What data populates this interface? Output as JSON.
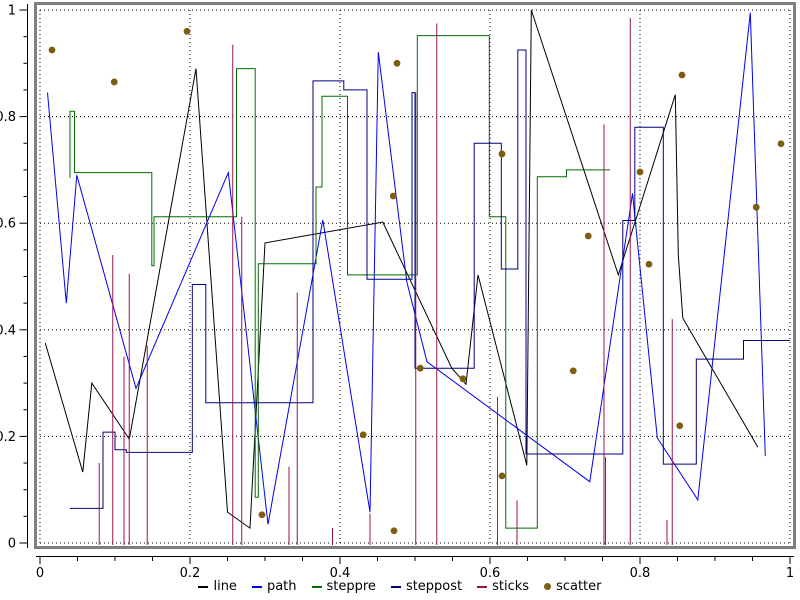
{
  "style": {
    "background": "#ffffff",
    "frame_color": "#7f7f7f",
    "grid_color": "#000000",
    "axis_color": "#000000",
    "text_color": "#000000"
  },
  "axes": {
    "x": {
      "min": 0,
      "max": 1,
      "major_step": 0.2,
      "minor_step": 0.05,
      "tick_labels": [
        "0",
        "0.2",
        "0.4",
        "0.6",
        "0.8",
        "1"
      ]
    },
    "y": {
      "min": 0,
      "max": 1,
      "major_step": 0.2,
      "minor_step": 0.05,
      "tick_labels": [
        "0",
        "0.2",
        "0.4",
        "0.6",
        "0.8",
        "1"
      ]
    }
  },
  "legend": {
    "items": [
      {
        "label": "line",
        "color": "#000000",
        "marker": "dash"
      },
      {
        "label": "path",
        "color": "#0000f0",
        "marker": "dash"
      },
      {
        "label": "steppre",
        "color": "#006e00",
        "marker": "dash"
      },
      {
        "label": "steppost",
        "color": "#000080",
        "marker": "dash"
      },
      {
        "label": "sticks",
        "color": "#991450",
        "marker": "dash"
      },
      {
        "label": "scatter",
        "color": "#7e5c10",
        "marker": "dot"
      }
    ]
  },
  "chart_data": {
    "type": "mixed",
    "title": "",
    "xlabel": "",
    "ylabel": "",
    "xlim": [
      0,
      1
    ],
    "ylim": [
      0,
      1
    ],
    "grid": "dotted lines at 0.2 intervals on both axes",
    "legend_position": "bottom-center",
    "series": [
      {
        "name": "line",
        "type": "line",
        "color": "#000000",
        "points": [
          [
            0.007,
            0.375
          ],
          [
            0.057,
            0.133
          ],
          [
            0.069,
            0.3
          ],
          [
            0.119,
            0.195
          ],
          [
            0.208,
            0.89
          ],
          [
            0.25,
            0.058
          ],
          [
            0.28,
            0.028
          ],
          [
            0.3,
            0.563
          ],
          [
            0.457,
            0.602
          ],
          [
            0.549,
            0.328
          ],
          [
            0.568,
            0.298
          ],
          [
            0.584,
            0.503
          ],
          [
            0.649,
            0.146
          ],
          [
            0.655,
            1.0
          ],
          [
            0.771,
            0.503
          ],
          [
            0.847,
            0.841
          ],
          [
            0.851,
            0.54
          ],
          [
            0.857,
            0.422
          ],
          [
            0.957,
            0.18
          ]
        ]
      },
      {
        "name": "path",
        "type": "line",
        "color": "#0000f0",
        "points": [
          [
            0.01,
            0.845
          ],
          [
            0.035,
            0.45
          ],
          [
            0.049,
            0.69
          ],
          [
            0.128,
            0.29
          ],
          [
            0.251,
            0.695
          ],
          [
            0.304,
            0.035
          ],
          [
            0.377,
            0.606
          ],
          [
            0.44,
            0.058
          ],
          [
            0.451,
            0.921
          ],
          [
            0.489,
            0.49
          ],
          [
            0.516,
            0.34
          ],
          [
            0.733,
            0.115
          ],
          [
            0.79,
            0.656
          ],
          [
            0.823,
            0.197
          ],
          [
            0.877,
            0.081
          ],
          [
            0.947,
            0.995
          ],
          [
            0.967,
            0.163
          ]
        ]
      },
      {
        "name": "steppre",
        "type": "steppre",
        "color": "#006e00",
        "points": [
          [
            0.04,
            0.685
          ],
          [
            0.046,
            0.81
          ],
          [
            0.149,
            0.695
          ],
          [
            0.152,
            0.52
          ],
          [
            0.262,
            0.612
          ],
          [
            0.287,
            0.89
          ],
          [
            0.291,
            0.086
          ],
          [
            0.368,
            0.524
          ],
          [
            0.376,
            0.668
          ],
          [
            0.41,
            0.838
          ],
          [
            0.503,
            0.503
          ],
          [
            0.599,
            0.952
          ],
          [
            0.621,
            0.612
          ],
          [
            0.663,
            0.028
          ],
          [
            0.702,
            0.687
          ],
          [
            0.76,
            0.7
          ]
        ]
      },
      {
        "name": "steppost",
        "type": "steppost",
        "color": "#000080",
        "points": [
          [
            0.04,
            0.065
          ],
          [
            0.084,
            0.208
          ],
          [
            0.1,
            0.175
          ],
          [
            0.115,
            0.17
          ],
          [
            0.203,
            0.485
          ],
          [
            0.221,
            0.263
          ],
          [
            0.364,
            0.867
          ],
          [
            0.405,
            0.85
          ],
          [
            0.436,
            0.495
          ],
          [
            0.496,
            0.845
          ],
          [
            0.5,
            0.328
          ],
          [
            0.579,
            0.75
          ],
          [
            0.615,
            0.514
          ],
          [
            0.637,
            0.925
          ],
          [
            0.648,
            0.167
          ],
          [
            0.777,
            0.605
          ],
          [
            0.793,
            0.78
          ],
          [
            0.831,
            0.148
          ],
          [
            0.875,
            0.345
          ],
          [
            0.938,
            0.38
          ],
          [
            1.0,
            0.38
          ]
        ]
      },
      {
        "name": "sticks",
        "type": "sticks",
        "color": "#991450",
        "points": [
          [
            0.079,
            0.15
          ],
          [
            0.097,
            0.54
          ],
          [
            0.112,
            0.35
          ],
          [
            0.119,
            0.505
          ],
          [
            0.143,
            0.37
          ],
          [
            0.257,
            0.935
          ],
          [
            0.269,
            0.612
          ],
          [
            0.332,
            0.143
          ],
          [
            0.343,
            0.47
          ],
          [
            0.39,
            0.028
          ],
          [
            0.44,
            0.055
          ],
          [
            0.501,
            0.845
          ],
          [
            0.529,
            0.975
          ],
          [
            0.61,
            0.274
          ],
          [
            0.636,
            0.08
          ],
          [
            0.752,
            0.785
          ],
          [
            0.754,
            0.161
          ],
          [
            0.787,
            0.985
          ],
          [
            0.836,
            0.043
          ],
          [
            0.843,
            0.42
          ]
        ]
      },
      {
        "name": "scatter",
        "type": "scatter",
        "color": "#7e5c10",
        "points": [
          [
            0.016,
            0.925
          ],
          [
            0.099,
            0.865
          ],
          [
            0.196,
            0.96
          ],
          [
            0.296,
            0.053
          ],
          [
            0.431,
            0.203
          ],
          [
            0.472,
            0.023
          ],
          [
            0.471,
            0.651
          ],
          [
            0.476,
            0.9
          ],
          [
            0.507,
            0.328
          ],
          [
            0.564,
            0.308
          ],
          [
            0.616,
            0.126
          ],
          [
            0.616,
            0.73
          ],
          [
            0.711,
            0.323
          ],
          [
            0.731,
            0.576
          ],
          [
            0.8,
            0.696
          ],
          [
            0.812,
            0.523
          ],
          [
            0.853,
            0.22
          ],
          [
            0.856,
            0.878
          ],
          [
            0.955,
            0.63
          ],
          [
            0.988,
            0.749
          ]
        ]
      }
    ]
  }
}
